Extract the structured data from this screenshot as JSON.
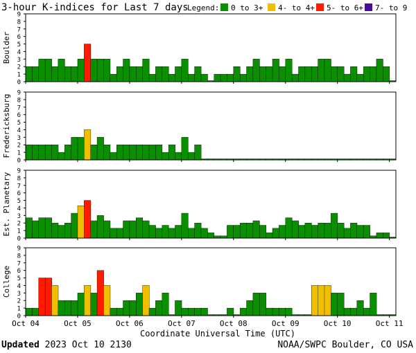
{
  "header": {
    "title": "3-hour K-indices for Last 7 days",
    "legend_label": "Legend:",
    "legend": [
      {
        "label": "0 to 3+",
        "color": "#0a8f00"
      },
      {
        "label": "4- to 4+",
        "color": "#f0c000"
      },
      {
        "label": "5- to 6+",
        "color": "#ff1a00"
      },
      {
        "label": "7- to 9",
        "color": "#4a0a9a"
      }
    ]
  },
  "chart_data": {
    "type": "bar",
    "y_ticks": [
      "0",
      "1",
      "2",
      "3",
      "4",
      "5",
      "6",
      "7",
      "8",
      "9"
    ],
    "ylim": [
      0,
      9
    ],
    "x_ticks": [
      "Oct 04",
      "Oct 05",
      "Oct 06",
      "Oct 07",
      "Oct 08",
      "Oct 09",
      "Oct 10",
      "Oct 11"
    ],
    "xlabel": "Coordinate Universal Time (UTC)",
    "color_scale": {
      "green_max": 3.67,
      "yellow_max": 4.67,
      "red_max": 6.67,
      "purple": "7- to 9"
    },
    "panels": [
      {
        "name": "Boulder",
        "values": [
          2,
          2,
          3,
          3,
          2,
          3,
          2,
          2,
          3,
          5,
          3,
          3,
          3,
          1,
          2,
          3,
          2,
          2,
          3,
          1,
          2,
          2,
          1,
          2,
          3,
          1,
          2,
          1,
          0.1,
          1,
          1,
          1,
          2,
          1,
          2,
          3,
          2,
          2,
          3,
          2,
          3,
          1,
          2,
          2,
          2,
          3,
          3,
          2,
          2,
          1,
          2,
          1,
          2,
          2,
          3,
          2,
          0.1
        ]
      },
      {
        "name": "Fredericksburg",
        "values": [
          2,
          2,
          2,
          2,
          2,
          1,
          2,
          3,
          3,
          4,
          2,
          3,
          2,
          1,
          2,
          2,
          2,
          2,
          2,
          2,
          2,
          1,
          2,
          1,
          3,
          1,
          2,
          0.1,
          0.1,
          0.1,
          0.1,
          0.1,
          0.1,
          0.1,
          0.1,
          0.1,
          0.1,
          0.1,
          0.1,
          0.1,
          0.1,
          0.1,
          0.1,
          0.1,
          0.1,
          0.1,
          0.1,
          0.1,
          0.1,
          0.1,
          0.1,
          0.1,
          0.1,
          0.1,
          0.1,
          0.1,
          0.1
        ]
      },
      {
        "name": "Est. Planetary",
        "values": [
          2.7,
          2.3,
          2.7,
          2.7,
          2.0,
          1.7,
          2.0,
          3.3,
          4.3,
          5.0,
          2.3,
          3.0,
          2.3,
          1.3,
          1.3,
          2.3,
          2.3,
          2.7,
          2.3,
          1.7,
          1.3,
          1.7,
          1.3,
          1.7,
          3.3,
          1.3,
          2.0,
          1.3,
          0.7,
          0.3,
          0.3,
          1.7,
          1.7,
          2.0,
          2.0,
          2.3,
          1.7,
          0.7,
          1.3,
          1.7,
          2.7,
          2.3,
          1.7,
          2.0,
          1.7,
          2.0,
          2.0,
          3.3,
          2.0,
          1.3,
          2.0,
          1.7,
          1.7,
          0.3,
          0.7,
          0.7,
          0.1
        ]
      },
      {
        "name": "College",
        "values": [
          1,
          1,
          5,
          5,
          4,
          2,
          2,
          2,
          3,
          4,
          3,
          6,
          4,
          1,
          1,
          2,
          2,
          3,
          4,
          1,
          2,
          3,
          0.1,
          2,
          1,
          1,
          1,
          1,
          0.1,
          0.1,
          0.1,
          1,
          0.1,
          1,
          2,
          3,
          3,
          1,
          1,
          1,
          1,
          0.1,
          0.1,
          0.1,
          4,
          4,
          4,
          3,
          3,
          1,
          1,
          2,
          1,
          3,
          0.1,
          0.1,
          0.1
        ]
      }
    ]
  },
  "footer": {
    "updated_label": "Updated",
    "updated_time": "2023 Oct 10 2130",
    "credit": "NOAA/SWPC Boulder, CO USA"
  }
}
